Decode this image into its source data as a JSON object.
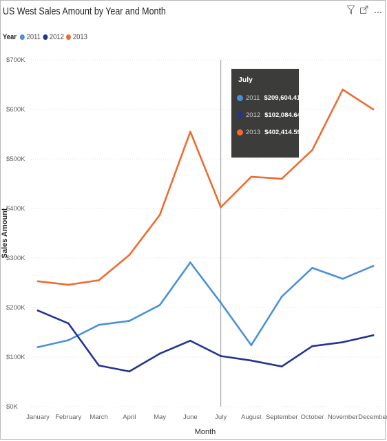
{
  "visual": {
    "title": "US West Sales Amount by Year and Month",
    "icons": [
      "filter-icon",
      "focus-mode-icon",
      "more-options-icon"
    ]
  },
  "legend": {
    "title": "Year",
    "items": [
      {
        "label": "2011",
        "color": "#4a90d9"
      },
      {
        "label": "2012",
        "color": "#24348f"
      },
      {
        "label": "2013",
        "color": "#ee6b2f"
      }
    ]
  },
  "tooltip": {
    "title": "July",
    "rows": [
      {
        "year": "2011",
        "value": "$209,604.412",
        "color": "#4a90d9"
      },
      {
        "year": "2012",
        "value": "$102,084.64",
        "color": "#24348f"
      },
      {
        "year": "2013",
        "value": "$402,414.59",
        "color": "#ee6b2f"
      }
    ]
  },
  "chart_data": {
    "type": "line",
    "title": "US West Sales Amount by Year and Month",
    "xlabel": "Month",
    "ylabel": "Sales Amount",
    "categories": [
      "January",
      "February",
      "March",
      "April",
      "May",
      "June",
      "July",
      "August",
      "September",
      "October",
      "November",
      "December"
    ],
    "yticks": [
      0,
      100000,
      200000,
      300000,
      400000,
      500000,
      600000,
      700000
    ],
    "ytick_labels": [
      "$0K",
      "$100K",
      "$200K",
      "$300K",
      "$400K",
      "$500K",
      "$600K",
      "$700K"
    ],
    "ylim": [
      0,
      700000
    ],
    "grid": true,
    "legend_position": "top-left",
    "highlight_category": "July",
    "series": [
      {
        "name": "2011",
        "color": "#4a90d9",
        "values": [
          120000,
          134000,
          165000,
          173000,
          205000,
          291000,
          209604.412,
          124000,
          222000,
          280000,
          258000,
          284000
        ]
      },
      {
        "name": "2012",
        "color": "#24348f",
        "values": [
          194000,
          168000,
          83000,
          71000,
          107000,
          133000,
          102084.64,
          93000,
          81000,
          122000,
          130000,
          144000
        ]
      },
      {
        "name": "2013",
        "color": "#ee6b2f",
        "values": [
          253000,
          246000,
          255000,
          306000,
          387000,
          555000,
          402414.59,
          464000,
          460000,
          518000,
          640000,
          600000
        ]
      }
    ]
  }
}
